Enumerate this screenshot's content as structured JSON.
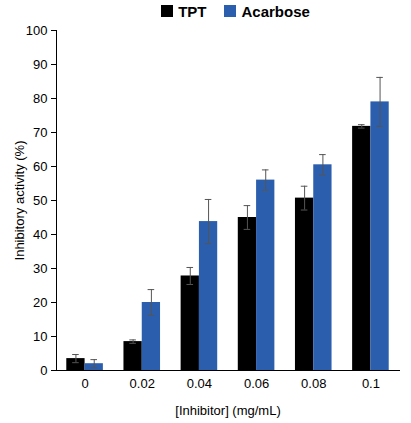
{
  "chart_data": {
    "type": "bar",
    "x_label": "[Inhibitor] (mg/mL)",
    "y_label": "Inhibitory activity (%)",
    "categories": [
      "0",
      "0.02",
      "0.04",
      "0.06",
      "0.08",
      "0.1"
    ],
    "series": [
      {
        "name": "TPT",
        "color": "#000000",
        "values": [
          3.5,
          8.5,
          27.8,
          45,
          50.7,
          71.8
        ],
        "errors": [
          1.2,
          0.5,
          2.5,
          3.5,
          3.5,
          0.5
        ]
      },
      {
        "name": "Acarbose",
        "color": "#2b5fad",
        "values": [
          2,
          20,
          43.8,
          56,
          60.5,
          79
        ],
        "errors": [
          1.2,
          3.8,
          6.5,
          3,
          3,
          7.2
        ]
      }
    ],
    "ylim": [
      0,
      100
    ],
    "yticks": [
      0,
      10,
      20,
      30,
      40,
      50,
      60,
      70,
      80,
      90,
      100
    ],
    "grid": false,
    "legend": "top"
  }
}
